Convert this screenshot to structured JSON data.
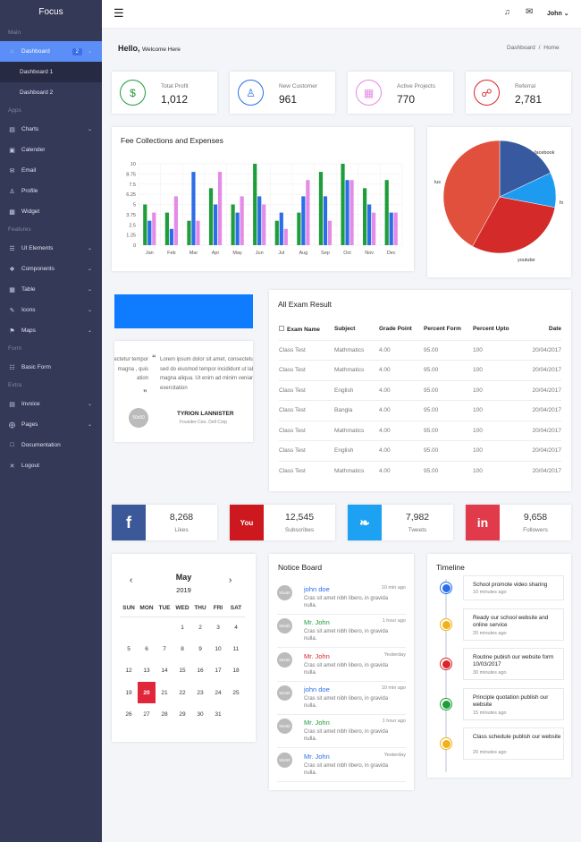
{
  "sidebar": {
    "brand": "Focus",
    "sections": {
      "main": "Main",
      "apps": "Apps",
      "features": "Features",
      "form": "Form",
      "extra": "Extra"
    },
    "dashboard": {
      "label": "Dashboard",
      "badge": "2"
    },
    "dashboard_sub": [
      "Dashboard 1",
      "Dashboard 2"
    ],
    "apps_items": [
      "Charts",
      "Calender",
      "Email",
      "Profile",
      "Widget"
    ],
    "feature_items": [
      "UI Elements",
      "Components",
      "Table",
      "Icons",
      "Maps"
    ],
    "form_items": [
      "Basic Form"
    ],
    "extra_items": [
      "Invoice",
      "Pages",
      "Documentation",
      "Logout"
    ]
  },
  "topbar": {
    "user": "John"
  },
  "page": {
    "hello": "Hello,",
    "welcome": "Welcome Here",
    "breadcrumb": [
      "Dashboard",
      "/",
      "Home"
    ]
  },
  "stats": [
    {
      "label": "Total Profit",
      "value": "1,012",
      "icon": "dollar-icon",
      "color": "#1e9d3b"
    },
    {
      "label": "New Customer",
      "value": "961",
      "icon": "user-icon",
      "color": "#2b6ee8"
    },
    {
      "label": "Active Projects",
      "value": "770",
      "icon": "grid-icon",
      "color": "#e48ae8"
    },
    {
      "label": "Referral",
      "value": "2,781",
      "icon": "link-icon",
      "color": "#d9262c"
    }
  ],
  "fee_chart": {
    "title": "Fee Collections and Expenses"
  },
  "chart_data": [
    {
      "type": "bar",
      "title": "Fee Collections and Expenses",
      "categories": [
        "Jan",
        "Feb",
        "Mar",
        "Apr",
        "May",
        "Jun",
        "Jul",
        "Aug",
        "Sep",
        "Oct",
        "Nov",
        "Dec"
      ],
      "yticks": [
        "10",
        "8.75",
        "7.5",
        "6.25",
        "5",
        "3.75",
        "2.5",
        "1.25",
        "0"
      ],
      "ylim": [
        0,
        10
      ],
      "series": [
        {
          "color": "#1e9d3b",
          "values": [
            5,
            4,
            3,
            7,
            5,
            10,
            3,
            4,
            9,
            10,
            7,
            8
          ]
        },
        {
          "color": "#2b6ee8",
          "values": [
            3,
            2,
            9,
            5,
            4,
            6,
            4,
            6,
            6,
            8,
            5,
            4
          ]
        },
        {
          "color": "#e48ae8",
          "values": [
            4,
            6,
            3,
            9,
            6,
            5,
            2,
            8,
            3,
            8,
            4,
            4
          ]
        }
      ]
    },
    {
      "type": "pie",
      "labels": [
        "facebook",
        "fx",
        "youtube",
        "lus"
      ],
      "values": [
        18,
        10,
        30,
        42
      ],
      "colors": [
        "#37599f",
        "#1d9bf0",
        "#d42a2a",
        "#e0503c"
      ]
    }
  ],
  "testimonial": {
    "text_left": "sectetur tempor magna , quis ation",
    "text_main": "Lorem ipsum dolor sit amet, consectetur adipisicing elit, sed do eiusmod tempor incididunt ut labore et dolore magna aliqua. Ut enim ad minim veniam, quis nostrud exercitation",
    "avatar": "50x50",
    "name": "TYRION LANNISTER",
    "role": "Founder-Ceo. Dell Corp"
  },
  "exam": {
    "title": "All Exam Result",
    "headers": [
      "Exam Name",
      "Subject",
      "Grade Point",
      "Percent Form",
      "Percent Upto",
      "Date"
    ],
    "rows": [
      [
        "Class Test",
        "Mathmatics",
        "4.00",
        "95.00",
        "100",
        "20/04/2017"
      ],
      [
        "Class Test",
        "Mathmatics",
        "4.00",
        "95.00",
        "100",
        "20/04/2017"
      ],
      [
        "Class Test",
        "English",
        "4.00",
        "95.00",
        "100",
        "20/04/2017"
      ],
      [
        "Class Test",
        "Bangla",
        "4.00",
        "95.00",
        "100",
        "20/04/2017"
      ],
      [
        "Class Test",
        "Mathmatics",
        "4.00",
        "95.00",
        "100",
        "20/04/2017"
      ],
      [
        "Class Test",
        "English",
        "4.00",
        "95.00",
        "100",
        "20/04/2017"
      ],
      [
        "Class Test",
        "Mathmatics",
        "4.00",
        "95.00",
        "100",
        "20/04/2017"
      ]
    ]
  },
  "social": [
    {
      "icon": "facebook-icon",
      "glyph": "f",
      "value": "8,268",
      "label": "Likes",
      "color": "#3b5998"
    },
    {
      "icon": "youtube-icon",
      "glyph": "You",
      "value": "12,545",
      "label": "Subscribes",
      "color": "#cc181e"
    },
    {
      "icon": "twitter-icon",
      "glyph": "❧",
      "value": "7,982",
      "label": "Tweets",
      "color": "#1da1f2"
    },
    {
      "icon": "linkedin-icon",
      "glyph": "in",
      "value": "9,658",
      "label": "Followers",
      "color": "#e13a4a"
    }
  ],
  "calendar": {
    "month": "May",
    "year": "2019",
    "days": [
      "SUN",
      "MON",
      "TUE",
      "WED",
      "THU",
      "FRI",
      "SAT"
    ],
    "weeks": [
      [
        "",
        "",
        "",
        "1",
        "2",
        "3",
        "4"
      ],
      [
        "5",
        "6",
        "7",
        "8",
        "9",
        "10",
        "11"
      ],
      [
        "12",
        "13",
        "14",
        "15",
        "16",
        "17",
        "18"
      ],
      [
        "19",
        "20",
        "21",
        "22",
        "23",
        "24",
        "25"
      ],
      [
        "26",
        "27",
        "28",
        "29",
        "30",
        "31",
        ""
      ]
    ],
    "today": "20",
    "today_color": "#e0263a"
  },
  "notice": {
    "title": "Notice Board",
    "items": [
      {
        "avatar": "50x50",
        "name": "john doe",
        "time": "10 min ago",
        "text": "Cras sit amet nibh libero, in gravida nulla.",
        "color": "#2b6ee8"
      },
      {
        "avatar": "50x50",
        "name": "Mr. John",
        "time": "1 hour ago",
        "text": "Cras sit amet nibh libero, in gravida nulla.",
        "color": "#1e9d3b"
      },
      {
        "avatar": "50x50",
        "name": "Mr. John",
        "time": "Yesterday",
        "text": "Cras sit amet nibh libero, in gravida nulla.",
        "color": "#d9262c"
      },
      {
        "avatar": "50x50",
        "name": "john doe",
        "time": "10 min ago",
        "text": "Cras sit amet nibh libero, in gravida nulla.",
        "color": "#2b6ee8"
      },
      {
        "avatar": "50x50",
        "name": "Mr. John",
        "time": "1 hour ago",
        "text": "Cras sit amet nibh libero, in gravida nulla.",
        "color": "#1e9d3b"
      },
      {
        "avatar": "50x50",
        "name": "Mr. John",
        "time": "Yesterday",
        "text": "Cras sit amet nibh libero, in gravida nulla.",
        "color": "#2b6ee8"
      }
    ]
  },
  "timeline": {
    "title": "Timeline",
    "items": [
      {
        "title": "School promote video sharing",
        "meta": "10 minutes ago",
        "color": "#2b6ee8"
      },
      {
        "title": "Ready our school website and online service",
        "meta": "20 minutes ago",
        "color": "#f0b21a"
      },
      {
        "title": "Routine pubish our website form 10/03/2017",
        "meta": "30 minutes ago",
        "color": "#d9262c"
      },
      {
        "title": "Principle quotation publish our website",
        "meta": "15 minutes ago",
        "color": "#1e9d3b"
      },
      {
        "title": "Class schedule publish our website",
        "meta": "20 minutes ago",
        "color": "#f0b21a"
      }
    ]
  }
}
